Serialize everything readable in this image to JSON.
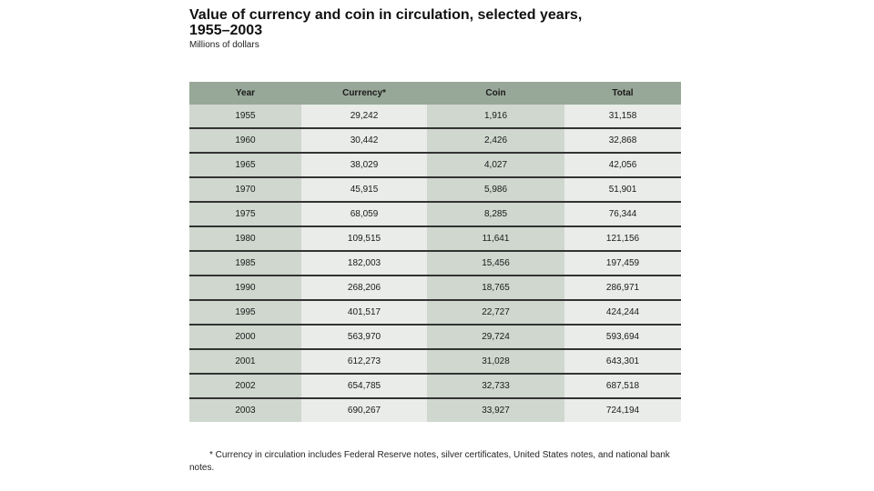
{
  "title": "Value of currency and coin in circulation, selected years, 1955–2003",
  "subtitle": "Millions of dollars",
  "footnote": "* Currency in circulation includes Federal Reserve notes, silver certificates, United States notes, and national bank notes.",
  "chart_data": {
    "type": "table",
    "title": "Value of currency and coin in circulation, selected years, 1955–2003",
    "subtitle": "Millions of dollars",
    "columns": [
      "Year",
      "Currency*",
      "Coin",
      "Total"
    ],
    "rows": [
      [
        "1955",
        "29,242",
        "1,916",
        "31,158"
      ],
      [
        "1960",
        "30,442",
        "2,426",
        "32,868"
      ],
      [
        "1965",
        "38,029",
        "4,027",
        "42,056"
      ],
      [
        "1970",
        "45,915",
        "5,986",
        "51,901"
      ],
      [
        "1975",
        "68,059",
        "8,285",
        "76,344"
      ],
      [
        "1980",
        "109,515",
        "11,641",
        "121,156"
      ],
      [
        "1985",
        "182,003",
        "15,456",
        "197,459"
      ],
      [
        "1990",
        "268,206",
        "18,765",
        "286,971"
      ],
      [
        "1995",
        "401,517",
        "22,727",
        "424,244"
      ],
      [
        "2000",
        "563,970",
        "29,724",
        "593,694"
      ],
      [
        "2001",
        "612,273",
        "31,028",
        "643,301"
      ],
      [
        "2002",
        "654,785",
        "32,733",
        "687,518"
      ],
      [
        "2003",
        "690,267",
        "33,927",
        "724,194"
      ]
    ]
  }
}
